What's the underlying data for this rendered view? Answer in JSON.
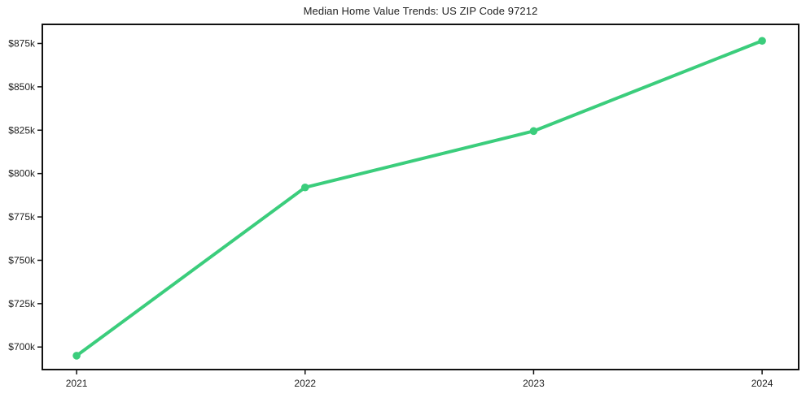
{
  "page": {
    "background": "#ffffff"
  },
  "chart_data": {
    "type": "line",
    "title": "Median Home Value Trends: US ZIP Code 97212",
    "xlabel": "",
    "ylabel": "",
    "x": [
      2021,
      2022,
      2023,
      2024
    ],
    "x_tick_labels": [
      "2021",
      "2022",
      "2023",
      "2024"
    ],
    "series": [
      {
        "name": "median-home-value",
        "color": "#3bcd7c",
        "values": [
          695000,
          792000,
          824500,
          876500
        ]
      }
    ],
    "y_ticks": [
      {
        "value": 700000,
        "label": "$700k"
      },
      {
        "value": 725000,
        "label": "$725k"
      },
      {
        "value": 750000,
        "label": "$750k"
      },
      {
        "value": 775000,
        "label": "$775k"
      },
      {
        "value": 800000,
        "label": "$800k"
      },
      {
        "value": 825000,
        "label": "$825k"
      },
      {
        "value": 850000,
        "label": "$850k"
      },
      {
        "value": 875000,
        "label": "$875k"
      }
    ],
    "xlim": [
      2020.85,
      2024.16
    ],
    "ylim": [
      687000,
      886000
    ],
    "grid": false,
    "legend": "none",
    "colors": {
      "line": "#3bcd7c",
      "axis": "#111111",
      "text": "#1f1f1f",
      "plot_background": "#ffffff"
    }
  }
}
